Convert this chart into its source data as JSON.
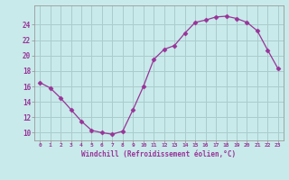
{
  "x": [
    0,
    1,
    2,
    3,
    4,
    5,
    6,
    7,
    8,
    9,
    10,
    11,
    12,
    13,
    14,
    15,
    16,
    17,
    18,
    19,
    20,
    21,
    22,
    23
  ],
  "y": [
    16.5,
    15.8,
    14.5,
    13.0,
    11.5,
    10.3,
    10.0,
    9.8,
    10.2,
    13.0,
    16.0,
    19.5,
    20.8,
    21.3,
    22.9,
    24.3,
    24.6,
    25.0,
    25.1,
    24.8,
    24.3,
    23.2,
    20.7,
    18.3
  ],
  "line_color": "#993399",
  "marker": "D",
  "markersize": 2.5,
  "bg_color": "#c8eaea",
  "grid_color": "#aacccc",
  "xlabel": "Windchill (Refroidissement éolien,°C)",
  "xtick_labels": [
    "0",
    "1",
    "2",
    "3",
    "4",
    "5",
    "6",
    "7",
    "8",
    "9",
    "10",
    "11",
    "12",
    "13",
    "14",
    "15",
    "16",
    "17",
    "18",
    "19",
    "20",
    "21",
    "22",
    "23"
  ],
  "ytick_labels": [
    "10",
    "12",
    "14",
    "16",
    "18",
    "20",
    "22",
    "24"
  ],
  "yticks": [
    10,
    12,
    14,
    16,
    18,
    20,
    22,
    24
  ],
  "ylim": [
    9.0,
    26.5
  ],
  "xlim": [
    -0.5,
    23.5
  ]
}
